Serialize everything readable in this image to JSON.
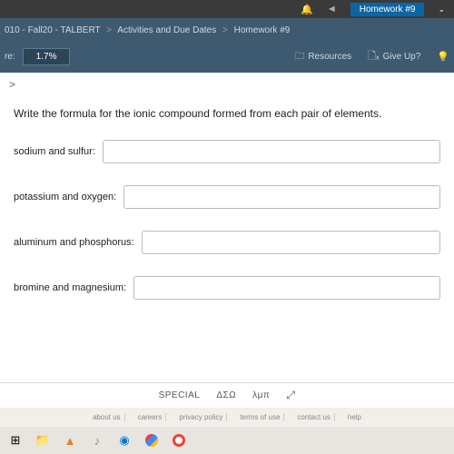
{
  "topbar": {
    "back_icon": "◄",
    "hw_label": "Homework #9"
  },
  "breadcrumb": {
    "part1": "010 - Fall20 - TALBERT",
    "part2": "Activities and Due Dates",
    "part3": "Homework #9",
    "sep": ">"
  },
  "scorebar": {
    "label": "re:",
    "value": "1.7%",
    "resources": "Resources",
    "giveup": "Give Up?"
  },
  "nav": {
    "chevron": ">"
  },
  "question": {
    "prompt": "Write the formula for the ionic compound formed from each pair of elements.",
    "fields": [
      {
        "label": "sodium and sulfur:",
        "value": ""
      },
      {
        "label": "potassium and oxygen:",
        "value": ""
      },
      {
        "label": "aluminum and phosphorus:",
        "value": ""
      },
      {
        "label": "bromine and magnesium:",
        "value": ""
      }
    ]
  },
  "toolbar": {
    "special": "SPECIAL",
    "greek1": "ΔΣΩ",
    "greek2": "λμπ",
    "expand": "⤢"
  },
  "footer": {
    "about": "about us",
    "careers": "careers",
    "privacy": "privacy policy",
    "terms": "terms of use",
    "contact": "contact us",
    "help": "help"
  }
}
